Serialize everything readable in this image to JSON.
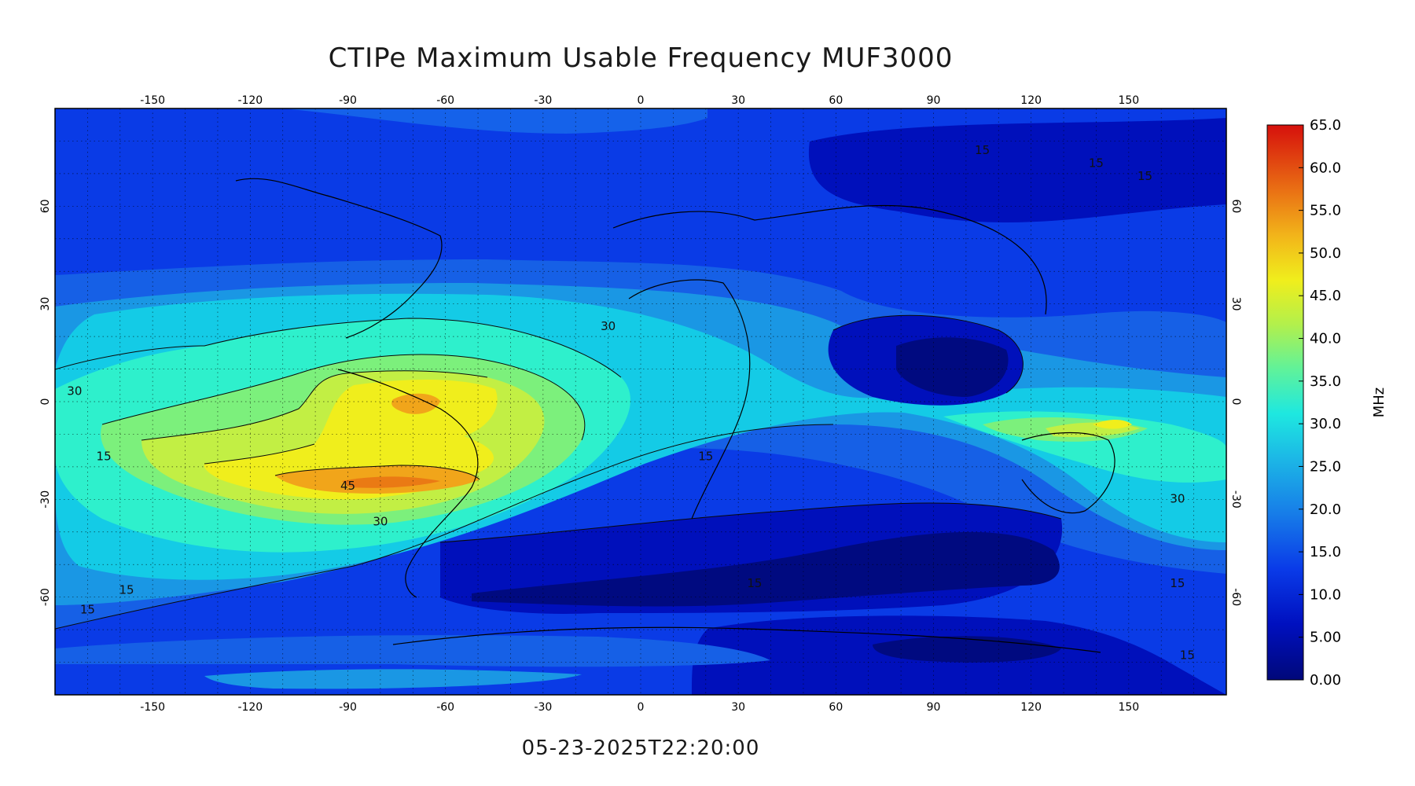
{
  "title": "CTIPe Maximum Usable Frequency MUF3000",
  "timestamp": "05-23-2025T22:20:00",
  "map": {
    "lon_ticks": [
      "-150",
      "-120",
      "-90",
      "-60",
      "-30",
      "0",
      "30",
      "60",
      "90",
      "120",
      "150"
    ],
    "lat_ticks": [
      "60",
      "30",
      "0",
      "-30",
      "-60"
    ],
    "lon_range": [
      -180,
      180
    ],
    "lat_range": [
      -90,
      90
    ],
    "grid": "dotted",
    "contour_labels": [
      "30",
      "15",
      "45",
      "30",
      "30",
      "15",
      "15",
      "15",
      "15",
      "15",
      "30",
      "15",
      "15",
      "15",
      "15"
    ]
  },
  "colorbar": {
    "unit": "MHz",
    "ticks": [
      "65.0",
      "60.0",
      "55.0",
      "50.0",
      "45.0",
      "40.0",
      "35.0",
      "30.0",
      "25.0",
      "20.0",
      "15.0",
      "10.0",
      "5.00",
      "0.00"
    ],
    "range": [
      0,
      65
    ]
  },
  "colors": {
    "levels": [
      "#000a7f",
      "#0010ba",
      "#0a2ae6",
      "#1562ea",
      "#1b97e6",
      "#14cbe6",
      "#2ef0cc",
      "#7cf07c",
      "#c2ef44",
      "#f0ee1c",
      "#f1b319",
      "#ea7a14",
      "#e24610",
      "#d8120d"
    ]
  }
}
